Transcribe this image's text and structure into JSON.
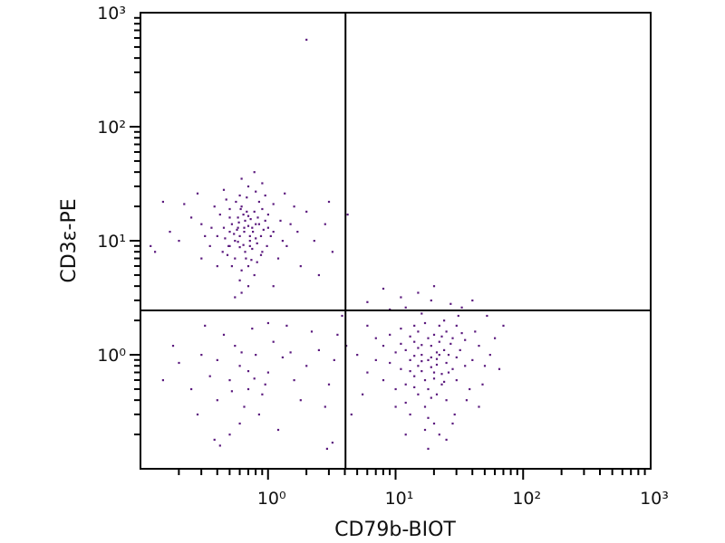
{
  "chart_data": {
    "type": "scatter",
    "title": "",
    "xlabel": "CD79b-BIOT",
    "ylabel": "CD3ε-PE",
    "xscale": "log",
    "yscale": "log",
    "xlim": [
      0.1,
      1000
    ],
    "ylim": [
      0.1,
      1000
    ],
    "xticks": [
      {
        "value": 1,
        "label": "10⁰"
      },
      {
        "value": 10,
        "label": "10¹"
      },
      {
        "value": 100,
        "label": "10²"
      },
      {
        "value": 1000,
        "label": "10³"
      }
    ],
    "yticks": [
      {
        "value": 1,
        "label": "10⁰"
      },
      {
        "value": 10,
        "label": "10¹"
      },
      {
        "value": 100,
        "label": "10²"
      },
      {
        "value": 1000,
        "label": "10³"
      }
    ],
    "grid": false,
    "point_color": "#5b1a7e",
    "quadrant_gates": {
      "x": 4.05,
      "y": 2.45
    },
    "points": [
      [
        0.65,
        12
      ],
      [
        0.5,
        9
      ],
      [
        0.8,
        14
      ],
      [
        0.72,
        11
      ],
      [
        0.58,
        16
      ],
      [
        0.9,
        8
      ],
      [
        0.45,
        13
      ],
      [
        0.62,
        20
      ],
      [
        0.7,
        6
      ],
      [
        1.1,
        12
      ],
      [
        0.55,
        10
      ],
      [
        0.68,
        18
      ],
      [
        0.82,
        9.5
      ],
      [
        0.48,
        7.5
      ],
      [
        0.75,
        13
      ],
      [
        0.6,
        25
      ],
      [
        0.95,
        15
      ],
      [
        0.4,
        11
      ],
      [
        0.66,
        8
      ],
      [
        0.85,
        22
      ],
      [
        0.52,
        14
      ],
      [
        0.78,
        5
      ],
      [
        1.3,
        10
      ],
      [
        0.35,
        9
      ],
      [
        0.7,
        30
      ],
      [
        0.6,
        4.5
      ],
      [
        1.0,
        17
      ],
      [
        0.42,
        17
      ],
      [
        0.88,
        11
      ],
      [
        0.57,
        12.5
      ],
      [
        0.73,
        15.5
      ],
      [
        0.64,
        9.2
      ],
      [
        0.5,
        19
      ],
      [
        1.2,
        7
      ],
      [
        0.3,
        14
      ],
      [
        0.8,
        27
      ],
      [
        0.62,
        5.5
      ],
      [
        0.98,
        9
      ],
      [
        0.46,
        10.5
      ],
      [
        0.7,
        13.5
      ],
      [
        0.55,
        7
      ],
      [
        0.9,
        19
      ],
      [
        0.38,
        20
      ],
      [
        0.75,
        8.5
      ],
      [
        1.5,
        14
      ],
      [
        0.6,
        11
      ],
      [
        0.68,
        24
      ],
      [
        0.5,
        16
      ],
      [
        0.82,
        6.5
      ],
      [
        1.1,
        21
      ],
      [
        0.32,
        11
      ],
      [
        0.72,
        10
      ],
      [
        0.58,
        13
      ],
      [
        0.92,
        12.5
      ],
      [
        0.44,
        8
      ],
      [
        0.66,
        15
      ],
      [
        0.78,
        18
      ],
      [
        0.52,
        6
      ],
      [
        1.4,
        9
      ],
      [
        0.62,
        35
      ],
      [
        0.25,
        16
      ],
      [
        0.85,
        14
      ],
      [
        0.7,
        4
      ],
      [
        0.47,
        23
      ],
      [
        1.05,
        11
      ],
      [
        0.6,
        8.8
      ],
      [
        0.76,
        12
      ],
      [
        0.54,
        11.5
      ],
      [
        0.88,
        7.5
      ],
      [
        0.64,
        17
      ],
      [
        1.7,
        12
      ],
      [
        0.4,
        6
      ],
      [
        0.95,
        25
      ],
      [
        0.58,
        9.8
      ],
      [
        0.7,
        16.5
      ],
      [
        0.36,
        13
      ],
      [
        0.8,
        10.5
      ],
      [
        1.25,
        15
      ],
      [
        0.5,
        12
      ],
      [
        0.67,
        7
      ],
      [
        2.0,
        18
      ],
      [
        0.22,
        21
      ],
      [
        0.62,
        3.5
      ],
      [
        1.8,
        6
      ],
      [
        0.3,
        7
      ],
      [
        0.9,
        32
      ],
      [
        0.45,
        28
      ],
      [
        2.3,
        10
      ],
      [
        0.2,
        10
      ],
      [
        0.15,
        22
      ],
      [
        1.1,
        4
      ],
      [
        2.8,
        14
      ],
      [
        0.78,
        40
      ],
      [
        0.55,
        3.2
      ],
      [
        1.35,
        26
      ],
      [
        2.5,
        5
      ],
      [
        0.28,
        26
      ],
      [
        0.17,
        12
      ],
      [
        1.6,
        20
      ],
      [
        0.65,
        13
      ],
      [
        0.72,
        9
      ],
      [
        0.59,
        14.5
      ],
      [
        0.83,
        16
      ],
      [
        0.49,
        9
      ],
      [
        1.0,
        13
      ],
      [
        0.61,
        19
      ],
      [
        0.74,
        6.8
      ],
      [
        0.56,
        22
      ],
      [
        3.2,
        8
      ],
      [
        0.13,
        8
      ],
      [
        18,
        0.9
      ],
      [
        15,
        0.8
      ],
      [
        22,
        1.0
      ],
      [
        20,
        0.7
      ],
      [
        12,
        1.1
      ],
      [
        25,
        0.85
      ],
      [
        17,
        0.6
      ],
      [
        14,
        1.3
      ],
      [
        30,
        0.95
      ],
      [
        19,
        1.2
      ],
      [
        11,
        0.75
      ],
      [
        23,
        0.55
      ],
      [
        16,
        1.0
      ],
      [
        28,
        1.4
      ],
      [
        13,
        0.9
      ],
      [
        21,
        0.45
      ],
      [
        35,
        0.8
      ],
      [
        10,
        1.05
      ],
      [
        24,
        1.1
      ],
      [
        18,
        0.5
      ],
      [
        15,
        1.6
      ],
      [
        26,
        0.7
      ],
      [
        9,
        0.85
      ],
      [
        20,
        1.5
      ],
      [
        32,
        1.1
      ],
      [
        14,
        0.65
      ],
      [
        17,
        0.35
      ],
      [
        22,
        1.8
      ],
      [
        40,
        0.9
      ],
      [
        12,
        0.55
      ],
      [
        27,
        1.25
      ],
      [
        19,
        0.95
      ],
      [
        8,
        1.2
      ],
      [
        16,
        0.72
      ],
      [
        25,
        0.4
      ],
      [
        13,
        1.45
      ],
      [
        30,
        0.6
      ],
      [
        21,
        0.82
      ],
      [
        11,
        1.7
      ],
      [
        45,
        1.2
      ],
      [
        18,
        0.28
      ],
      [
        24,
        2.0
      ],
      [
        15,
        1.15
      ],
      [
        10,
        0.5
      ],
      [
        33,
        1.55
      ],
      [
        20,
        0.62
      ],
      [
        7,
        0.9
      ],
      [
        28,
        0.75
      ],
      [
        16,
        2.3
      ],
      [
        12,
        0.38
      ],
      [
        22,
        1.3
      ],
      [
        38,
        0.5
      ],
      [
        14,
        0.98
      ],
      [
        26,
        1.0
      ],
      [
        17,
        1.9
      ],
      [
        9,
        1.5
      ],
      [
        50,
        0.8
      ],
      [
        19,
        0.42
      ],
      [
        23,
        0.68
      ],
      [
        13,
        0.3
      ],
      [
        31,
        2.2
      ],
      [
        11,
        1.25
      ],
      [
        21,
        1.05
      ],
      [
        6,
        0.7
      ],
      [
        35,
        1.35
      ],
      [
        15,
        0.45
      ],
      [
        25,
        1.6
      ],
      [
        18,
        1.4
      ],
      [
        29,
        0.3
      ],
      [
        8,
        0.6
      ],
      [
        42,
        1.6
      ],
      [
        12,
        2.6
      ],
      [
        20,
        0.25
      ],
      [
        16,
        0.88
      ],
      [
        55,
        1.0
      ],
      [
        24,
        0.58
      ],
      [
        10,
        0.35
      ],
      [
        27,
        2.8
      ],
      [
        14,
        1.8
      ],
      [
        36,
        0.4
      ],
      [
        7,
        1.4
      ],
      [
        19,
        3.0
      ],
      [
        22,
        0.2
      ],
      [
        13,
        0.72
      ],
      [
        60,
        1.4
      ],
      [
        30,
        1.8
      ],
      [
        17,
        0.22
      ],
      [
        6,
        1.8
      ],
      [
        48,
        0.55
      ],
      [
        11,
        3.2
      ],
      [
        25,
        0.18
      ],
      [
        5.5,
        0.45
      ],
      [
        65,
        0.75
      ],
      [
        9,
        2.5
      ],
      [
        33,
        2.6
      ],
      [
        15,
        3.5
      ],
      [
        20,
        4.0
      ],
      [
        40,
        3.0
      ],
      [
        5,
        1.0
      ],
      [
        70,
        1.8
      ],
      [
        28,
        0.25
      ],
      [
        12,
        0.2
      ],
      [
        8,
        3.8
      ],
      [
        52,
        2.2
      ],
      [
        18,
        0.15
      ],
      [
        6,
        2.9
      ],
      [
        45,
        0.35
      ],
      [
        16,
        1.22
      ],
      [
        21,
        0.92
      ],
      [
        23,
        1.45
      ],
      [
        14,
        0.52
      ],
      [
        19,
        0.78
      ],
      [
        0.6,
        0.8
      ],
      [
        0.5,
        0.6
      ],
      [
        0.8,
        1.0
      ],
      [
        0.7,
        0.5
      ],
      [
        0.4,
        0.9
      ],
      [
        1.0,
        0.7
      ],
      [
        0.55,
        1.2
      ],
      [
        0.9,
        0.45
      ],
      [
        0.35,
        0.65
      ],
      [
        1.3,
        0.95
      ],
      [
        0.65,
        0.35
      ],
      [
        0.45,
        1.5
      ],
      [
        1.6,
        0.6
      ],
      [
        0.3,
        1.0
      ],
      [
        0.75,
        1.7
      ],
      [
        2.0,
        0.8
      ],
      [
        0.25,
        0.5
      ],
      [
        1.1,
        1.3
      ],
      [
        0.6,
        0.25
      ],
      [
        0.2,
        0.85
      ],
      [
        2.5,
        1.1
      ],
      [
        0.85,
        0.3
      ],
      [
        0.4,
        0.4
      ],
      [
        1.4,
        1.8
      ],
      [
        3.0,
        0.55
      ],
      [
        0.18,
        1.2
      ],
      [
        0.7,
        0.72
      ],
      [
        1.8,
        0.4
      ],
      [
        0.5,
        0.2
      ],
      [
        2.2,
        1.6
      ],
      [
        0.95,
        0.55
      ],
      [
        0.32,
        1.8
      ],
      [
        1.2,
        0.22
      ],
      [
        3.3,
        0.9
      ],
      [
        0.15,
        0.6
      ],
      [
        0.62,
        1.05
      ],
      [
        0.42,
        0.16
      ],
      [
        2.8,
        0.35
      ],
      [
        0.78,
        0.62
      ],
      [
        1.5,
        1.05
      ],
      [
        0.28,
        0.3
      ],
      [
        3.5,
        1.5
      ],
      [
        0.52,
        0.48
      ],
      [
        1.0,
        1.9
      ],
      [
        0.38,
        0.18
      ],
      [
        2.9,
        0.15
      ],
      [
        3.2,
        0.17
      ],
      [
        2.0,
        580
      ],
      [
        4.2,
        17
      ],
      [
        3.0,
        22
      ],
      [
        0.12,
        9
      ],
      [
        4.5,
        0.3
      ],
      [
        3.8,
        2.2
      ],
      [
        4.1,
        1.2
      ]
    ]
  }
}
